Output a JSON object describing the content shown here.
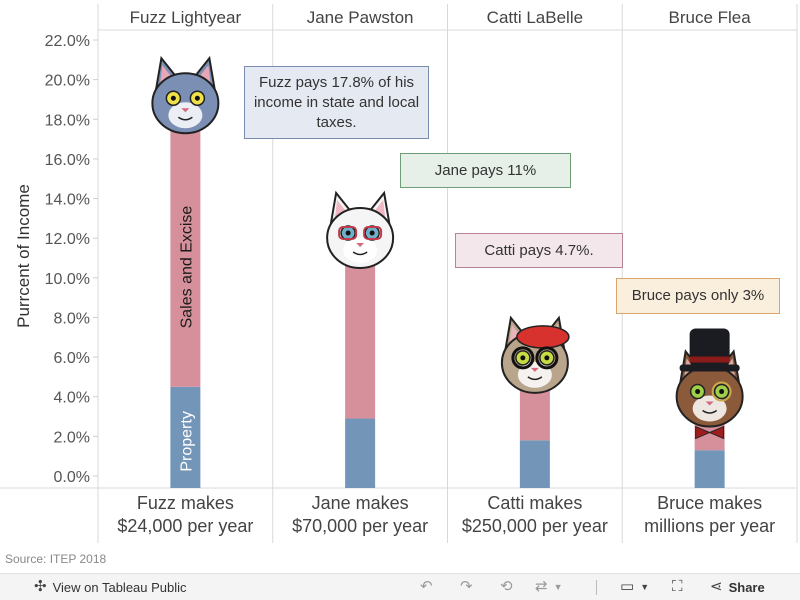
{
  "chart_data": {
    "type": "bar",
    "categories": [
      "Fuzz Lightyear",
      "Jane Pawston",
      "Catti LaBelle",
      "Bruce Flea"
    ],
    "series": [
      {
        "name": "Property",
        "values": [
          4.5,
          2.9,
          1.8,
          1.3
        ],
        "color": "#7396b8"
      },
      {
        "name": "Sales and Excise",
        "values": [
          13.3,
          8.1,
          2.9,
          1.7
        ],
        "color": "#d6909c"
      }
    ],
    "totals": [
      17.8,
      11.0,
      4.7,
      3.0
    ],
    "ylabel": "Purrcent of Income",
    "ylim": [
      0,
      22
    ],
    "yticks": [
      "0.0%",
      "2.0%",
      "4.0%",
      "6.0%",
      "8.0%",
      "10.0%",
      "12.0%",
      "14.0%",
      "16.0%",
      "18.0%",
      "20.0%",
      "22.0%"
    ],
    "ytick_values": [
      0,
      2,
      4,
      6,
      8,
      10,
      12,
      14,
      16,
      18,
      20,
      22
    ],
    "bar_labels": {
      "sales": "Sales and Excise",
      "property": "Property"
    },
    "grid": true,
    "footers": [
      [
        "Fuzz makes",
        "$24,000 per year"
      ],
      [
        "Jane makes",
        "$70,000 per year"
      ],
      [
        "Catti makes",
        "$250,000 per year"
      ],
      [
        "Bruce makes",
        "millions per year"
      ]
    ],
    "annotations": [
      {
        "text": "Fuzz pays 17.8% of his income in state and local taxes.",
        "border": "#7a8cb0",
        "background": "#e5e9f2"
      },
      {
        "text": "Jane pays 11%",
        "border": "#6f9d78",
        "background": "#e6f0e8"
      },
      {
        "text": "Catti pays 4.7%.",
        "border": "#b88394",
        "background": "#f3e7ec"
      },
      {
        "text": "Bruce pays only 3%",
        "border": "#d9a56a",
        "background": "#faeedd"
      }
    ]
  },
  "source": "Source: ITEP 2018",
  "toolbar": {
    "view_label": "View on Tableau Public",
    "share_label": "Share"
  },
  "icons": {
    "tableau": "tableau-logo-icon",
    "undo": "undo-icon",
    "redo": "redo-icon",
    "revert": "revert-icon",
    "refresh": "refresh-icon",
    "download": "download-icon",
    "fullscreen": "fullscreen-icon",
    "share": "share-icon"
  }
}
